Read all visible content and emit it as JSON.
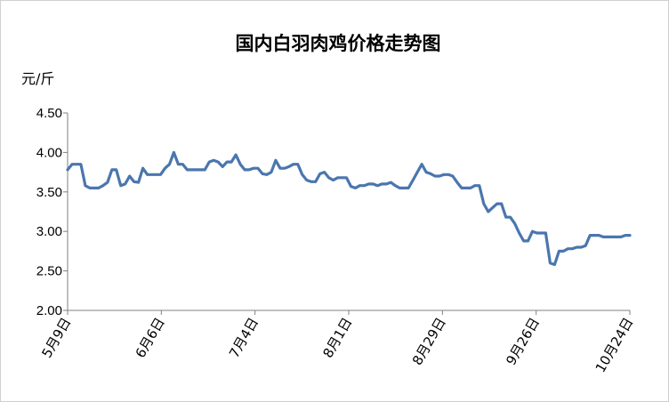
{
  "chart_data": {
    "type": "line",
    "title": "国内白羽肉鸡价格走势图",
    "ylabel": "元/斤",
    "xlabel": "",
    "ylim": [
      2.0,
      4.5
    ],
    "yticks": [
      "2.00",
      "2.50",
      "3.00",
      "3.50",
      "4.00",
      "4.50"
    ],
    "xtick_labels": [
      "5月9日",
      "6月6日",
      "7月4日",
      "8月1日",
      "8月29日",
      "9月26日",
      "10月24日"
    ],
    "grid": false,
    "legend": "none",
    "line_color": "#4a76ae",
    "series": [
      {
        "values": [
          3.78,
          3.85,
          3.85,
          3.85,
          3.58,
          3.55,
          3.55,
          3.55,
          3.58,
          3.62,
          3.78,
          3.78,
          3.58,
          3.6,
          3.7,
          3.63,
          3.62,
          3.8,
          3.72,
          3.72,
          3.72,
          3.72,
          3.8,
          3.85,
          4.0,
          3.85,
          3.85,
          3.78,
          3.78,
          3.78,
          3.78,
          3.78,
          3.88,
          3.9,
          3.88,
          3.82,
          3.88,
          3.88,
          3.97,
          3.85,
          3.78,
          3.78,
          3.8,
          3.8,
          3.73,
          3.72,
          3.75,
          3.9,
          3.8,
          3.8,
          3.82,
          3.85,
          3.85,
          3.72,
          3.65,
          3.63,
          3.63,
          3.73,
          3.75,
          3.68,
          3.65,
          3.68,
          3.68,
          3.68,
          3.57,
          3.55,
          3.58,
          3.58,
          3.6,
          3.6,
          3.58,
          3.6,
          3.6,
          3.62,
          3.58,
          3.55,
          3.55,
          3.55,
          3.65,
          3.75,
          3.85,
          3.75,
          3.73,
          3.7,
          3.7,
          3.72,
          3.72,
          3.7,
          3.62,
          3.55,
          3.55,
          3.55,
          3.58,
          3.58,
          3.35,
          3.25,
          3.3,
          3.35,
          3.35,
          3.18,
          3.18,
          3.1,
          2.98,
          2.88,
          2.88,
          3.0,
          2.98,
          2.98,
          2.98,
          2.6,
          2.58,
          2.75,
          2.75,
          2.78,
          2.78,
          2.8,
          2.8,
          2.82,
          2.95,
          2.95,
          2.95,
          2.93,
          2.93,
          2.93,
          2.93,
          2.93,
          2.95,
          2.95
        ]
      }
    ]
  }
}
